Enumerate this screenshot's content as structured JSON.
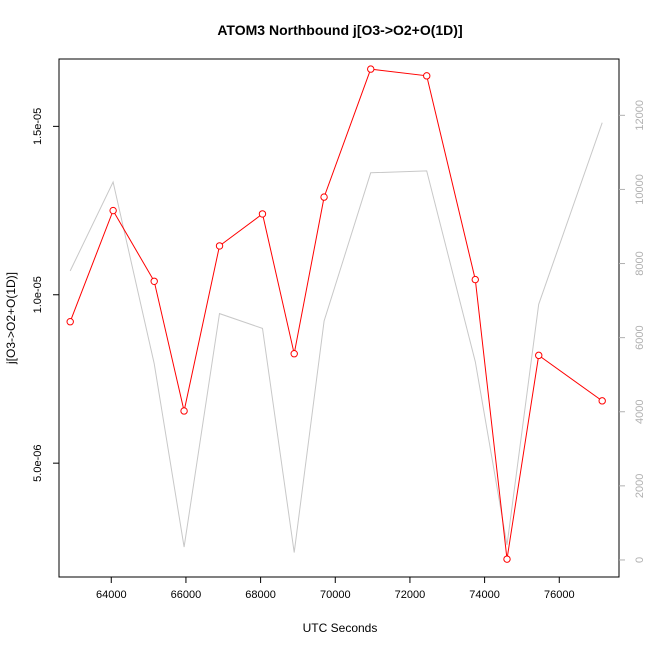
{
  "chart_data": {
    "type": "line",
    "title": "ATOM3 Northbound j[O3->O2+O(1D)]",
    "xlabel": "UTC Seconds",
    "ylabel": "j[O3->O2+O(1D)]",
    "xlim": [
      62600,
      77600
    ],
    "ylim": [
      1.62e-06,
      1.7e-05
    ],
    "y2lim": [
      -460,
      13520
    ],
    "x_ticks": [
      64000,
      66000,
      68000,
      70000,
      72000,
      74000,
      76000
    ],
    "x_tick_labels": [
      "64000",
      "66000",
      "68000",
      "70000",
      "72000",
      "74000",
      "76000"
    ],
    "y_ticks": [
      5e-06,
      1e-05,
      1.5e-05
    ],
    "y_tick_labels": [
      "5.0e-06",
      "1.0e-05",
      "1.5e-05"
    ],
    "y2_ticks": [
      0,
      2000,
      4000,
      6000,
      8000,
      10000,
      12000
    ],
    "y2_tick_labels": [
      "0",
      "2000",
      "4000",
      "6000",
      "8000",
      "10000",
      "12000"
    ],
    "series": [
      {
        "axis": "left",
        "color": "#ff0000",
        "marker": "open-circle",
        "x": [
          62900,
          64050,
          65150,
          65950,
          66900,
          68050,
          68900,
          69700,
          70950,
          72450,
          73750,
          74600,
          75450,
          77150
        ],
        "values": [
          9.2e-06,
          1.25e-05,
          1.04e-05,
          6.55e-06,
          1.145e-05,
          1.24e-05,
          8.25e-06,
          1.29e-05,
          1.67e-05,
          1.65e-05,
          1.045e-05,
          2.15e-06,
          8.2e-06,
          6.85e-06
        ]
      },
      {
        "axis": "right",
        "color": "#c8c8c8",
        "marker": "none",
        "x": [
          62900,
          64050,
          65150,
          65950,
          66900,
          68050,
          68900,
          69700,
          70950,
          72450,
          73750,
          74600,
          75450,
          77150
        ],
        "values": [
          7800,
          10200,
          5300,
          350,
          6650,
          6250,
          200,
          6450,
          10450,
          10500,
          5350,
          400,
          6900,
          11800
        ]
      }
    ]
  }
}
